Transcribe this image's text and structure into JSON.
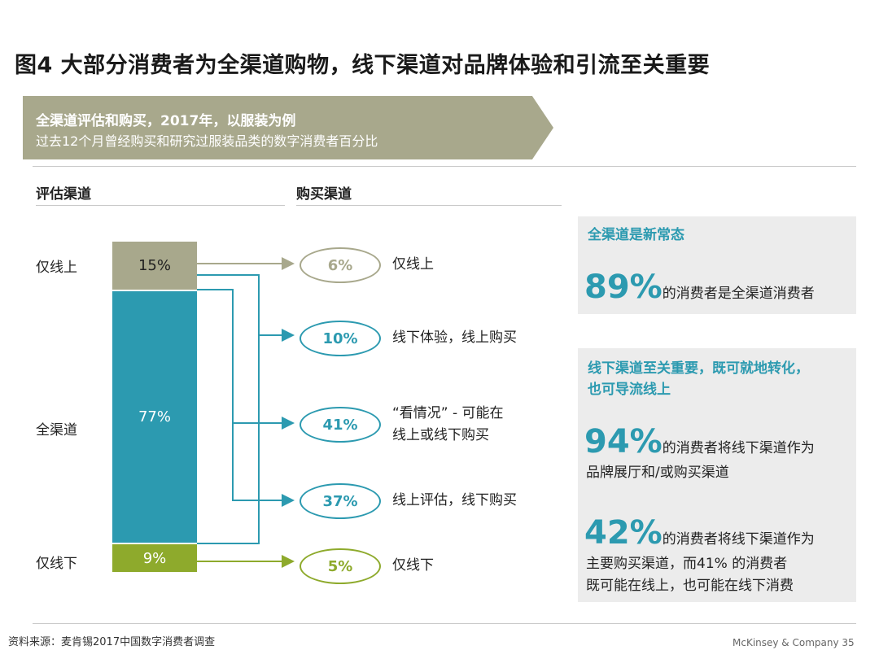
{
  "title": "图4 大部分消费者为全渠道购物，线下渠道对品牌体验和引流至关重要",
  "banner": {
    "line1": "全渠道评估和购买，2017年，以服装为例",
    "line2": "过去12个月曾经购买和研究过服装品类的数字消费者百分比"
  },
  "columns": {
    "evaluate": "评估渠道",
    "purchase": "购买渠道"
  },
  "chart_data": {
    "type": "bar",
    "title": "全渠道评估和购买，2017年，以服装为例",
    "subtitle": "过去12个月曾经购买和研究过服装品类的数字消费者百分比",
    "evaluation": {
      "header": "评估渠道",
      "categories": [
        "仅线上",
        "全渠道",
        "仅线下"
      ],
      "values": [
        15,
        77,
        9
      ],
      "value_labels": [
        "15%",
        "77%",
        "9%"
      ],
      "colors": [
        "#a8a88c",
        "#2c9ab0",
        "#8eaa2c"
      ]
    },
    "purchase": {
      "header": "购买渠道",
      "categories": [
        "仅线上",
        "线下体验，线上购买",
        "“看情况” - 可能在线上或线下购买",
        "线上评估，线下购买",
        "仅线下"
      ],
      "values": [
        6,
        10,
        41,
        37,
        5
      ],
      "value_labels": [
        "6%",
        "10%",
        "41%",
        "37%",
        "5%"
      ]
    }
  },
  "purchase_labels": {
    "online": "仅线上",
    "offline_exp": "线下体验，线上购买",
    "depends_1": "“看情况” - 可能在",
    "depends_2": "线上或线下购买",
    "online_eval": "线上评估，线下购买",
    "offline": "仅线下"
  },
  "panel1": {
    "head": "全渠道是新常态",
    "big": "89%",
    "text": "的消费者是全渠道消费者"
  },
  "panel2": {
    "head1": "线下渠道至关重要，既可就地转化，",
    "head2": "也可导流线上",
    "stat1_big": "94%",
    "stat1_text1": "的消费者将线下渠道作为",
    "stat1_text2": "品牌展厅和/或购买渠道",
    "stat2_big": "42%",
    "stat2_text1": "的消费者将线下渠道作为",
    "stat2_text2": "主要购买渠道，而41% 的消费者",
    "stat2_text3": "既可能在线上，也可能在线下消费"
  },
  "source": "资料来源：麦肯锡2017中国数字消费者调查",
  "footer": "McKinsey & Company   35",
  "colors": {
    "teal": "#2c9ab0",
    "khaki": "#a8a88c",
    "green": "#8eaa2c",
    "panel_bg": "#ececec"
  }
}
